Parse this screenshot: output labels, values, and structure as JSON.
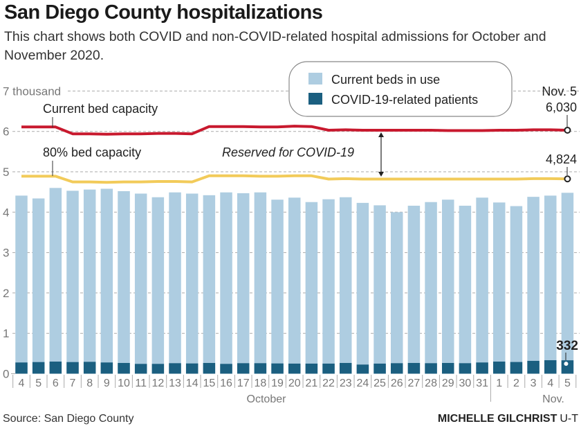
{
  "title": "San Diego County hospitalizations",
  "subtitle": "This chart shows both COVID and non-COVID-related hospital admissions for October and November 2020.",
  "source": "Source: San Diego County",
  "credit_name": "MICHELLE GILCHRIST",
  "credit_org": "U-T",
  "chart_data": {
    "type": "bar",
    "title": "San Diego County hospitalizations",
    "ylabel": "",
    "xlabel": "",
    "ylim": [
      0,
      7
    ],
    "y_unit_label": "7 thousand",
    "y_ticks": [
      "0",
      "1",
      "2",
      "3",
      "4",
      "5",
      "6",
      "7 thousand"
    ],
    "grid": true,
    "legend_placement": "top-center",
    "months": [
      {
        "label": "October"
      },
      {
        "label": "Nov."
      }
    ],
    "categories": [
      "4",
      "5",
      "6",
      "7",
      "8",
      "9",
      "10",
      "11",
      "12",
      "13",
      "14",
      "15",
      "16",
      "17",
      "18",
      "19",
      "20",
      "21",
      "22",
      "23",
      "24",
      "25",
      "26",
      "27",
      "28",
      "29",
      "30",
      "31",
      "1",
      "2",
      "3",
      "4",
      "5"
    ],
    "series": [
      {
        "name": "Current beds in use",
        "kind": "bar",
        "color": "#aecde1",
        "values": [
          4.41,
          4.34,
          4.6,
          4.53,
          4.56,
          4.58,
          4.52,
          4.46,
          4.37,
          4.49,
          4.46,
          4.42,
          4.49,
          4.47,
          4.49,
          4.31,
          4.36,
          4.25,
          4.32,
          4.37,
          4.23,
          4.17,
          4.0,
          4.16,
          4.25,
          4.31,
          4.16,
          4.36,
          4.24,
          4.15,
          4.38,
          4.41,
          4.48
        ]
      },
      {
        "name": "COVID-19-related patients",
        "kind": "bar",
        "color": "#1b5f80",
        "values": [
          0.278,
          0.288,
          0.3,
          0.288,
          0.294,
          0.278,
          0.266,
          0.243,
          0.243,
          0.26,
          0.254,
          0.266,
          0.243,
          0.26,
          0.26,
          0.254,
          0.25,
          0.25,
          0.25,
          0.266,
          0.226,
          0.25,
          0.26,
          0.266,
          0.26,
          0.266,
          0.26,
          0.278,
          0.3,
          0.29,
          0.318,
          0.334,
          0.332
        ]
      },
      {
        "name": "Current bed capacity",
        "kind": "line",
        "color": "#c8192e",
        "values": [
          6.11,
          6.11,
          6.11,
          5.94,
          5.94,
          5.93,
          5.94,
          5.94,
          5.95,
          5.95,
          5.94,
          6.12,
          6.12,
          6.12,
          6.11,
          6.11,
          6.13,
          6.12,
          6.03,
          6.04,
          6.03,
          6.03,
          6.03,
          6.03,
          6.03,
          6.02,
          6.02,
          6.02,
          6.03,
          6.03,
          6.04,
          6.04,
          6.03
        ]
      },
      {
        "name": "80% bed capacity",
        "kind": "line",
        "color": "#f2cb5a",
        "values": [
          4.89,
          4.89,
          4.89,
          4.75,
          4.75,
          4.74,
          4.75,
          4.75,
          4.76,
          4.76,
          4.75,
          4.9,
          4.9,
          4.9,
          4.89,
          4.89,
          4.9,
          4.9,
          4.82,
          4.83,
          4.82,
          4.82,
          4.82,
          4.82,
          4.82,
          4.82,
          4.82,
          4.82,
          4.82,
          4.82,
          4.83,
          4.83,
          4.824
        ]
      }
    ],
    "annotations": {
      "capacity_label": "Current bed capacity",
      "eighty_label": "80% bed capacity",
      "reserved_label": "Reserved for COVID-19",
      "end_date": "Nov. 5",
      "end_capacity": "6,030",
      "end_eighty": "4,824",
      "end_covid": "332"
    }
  }
}
